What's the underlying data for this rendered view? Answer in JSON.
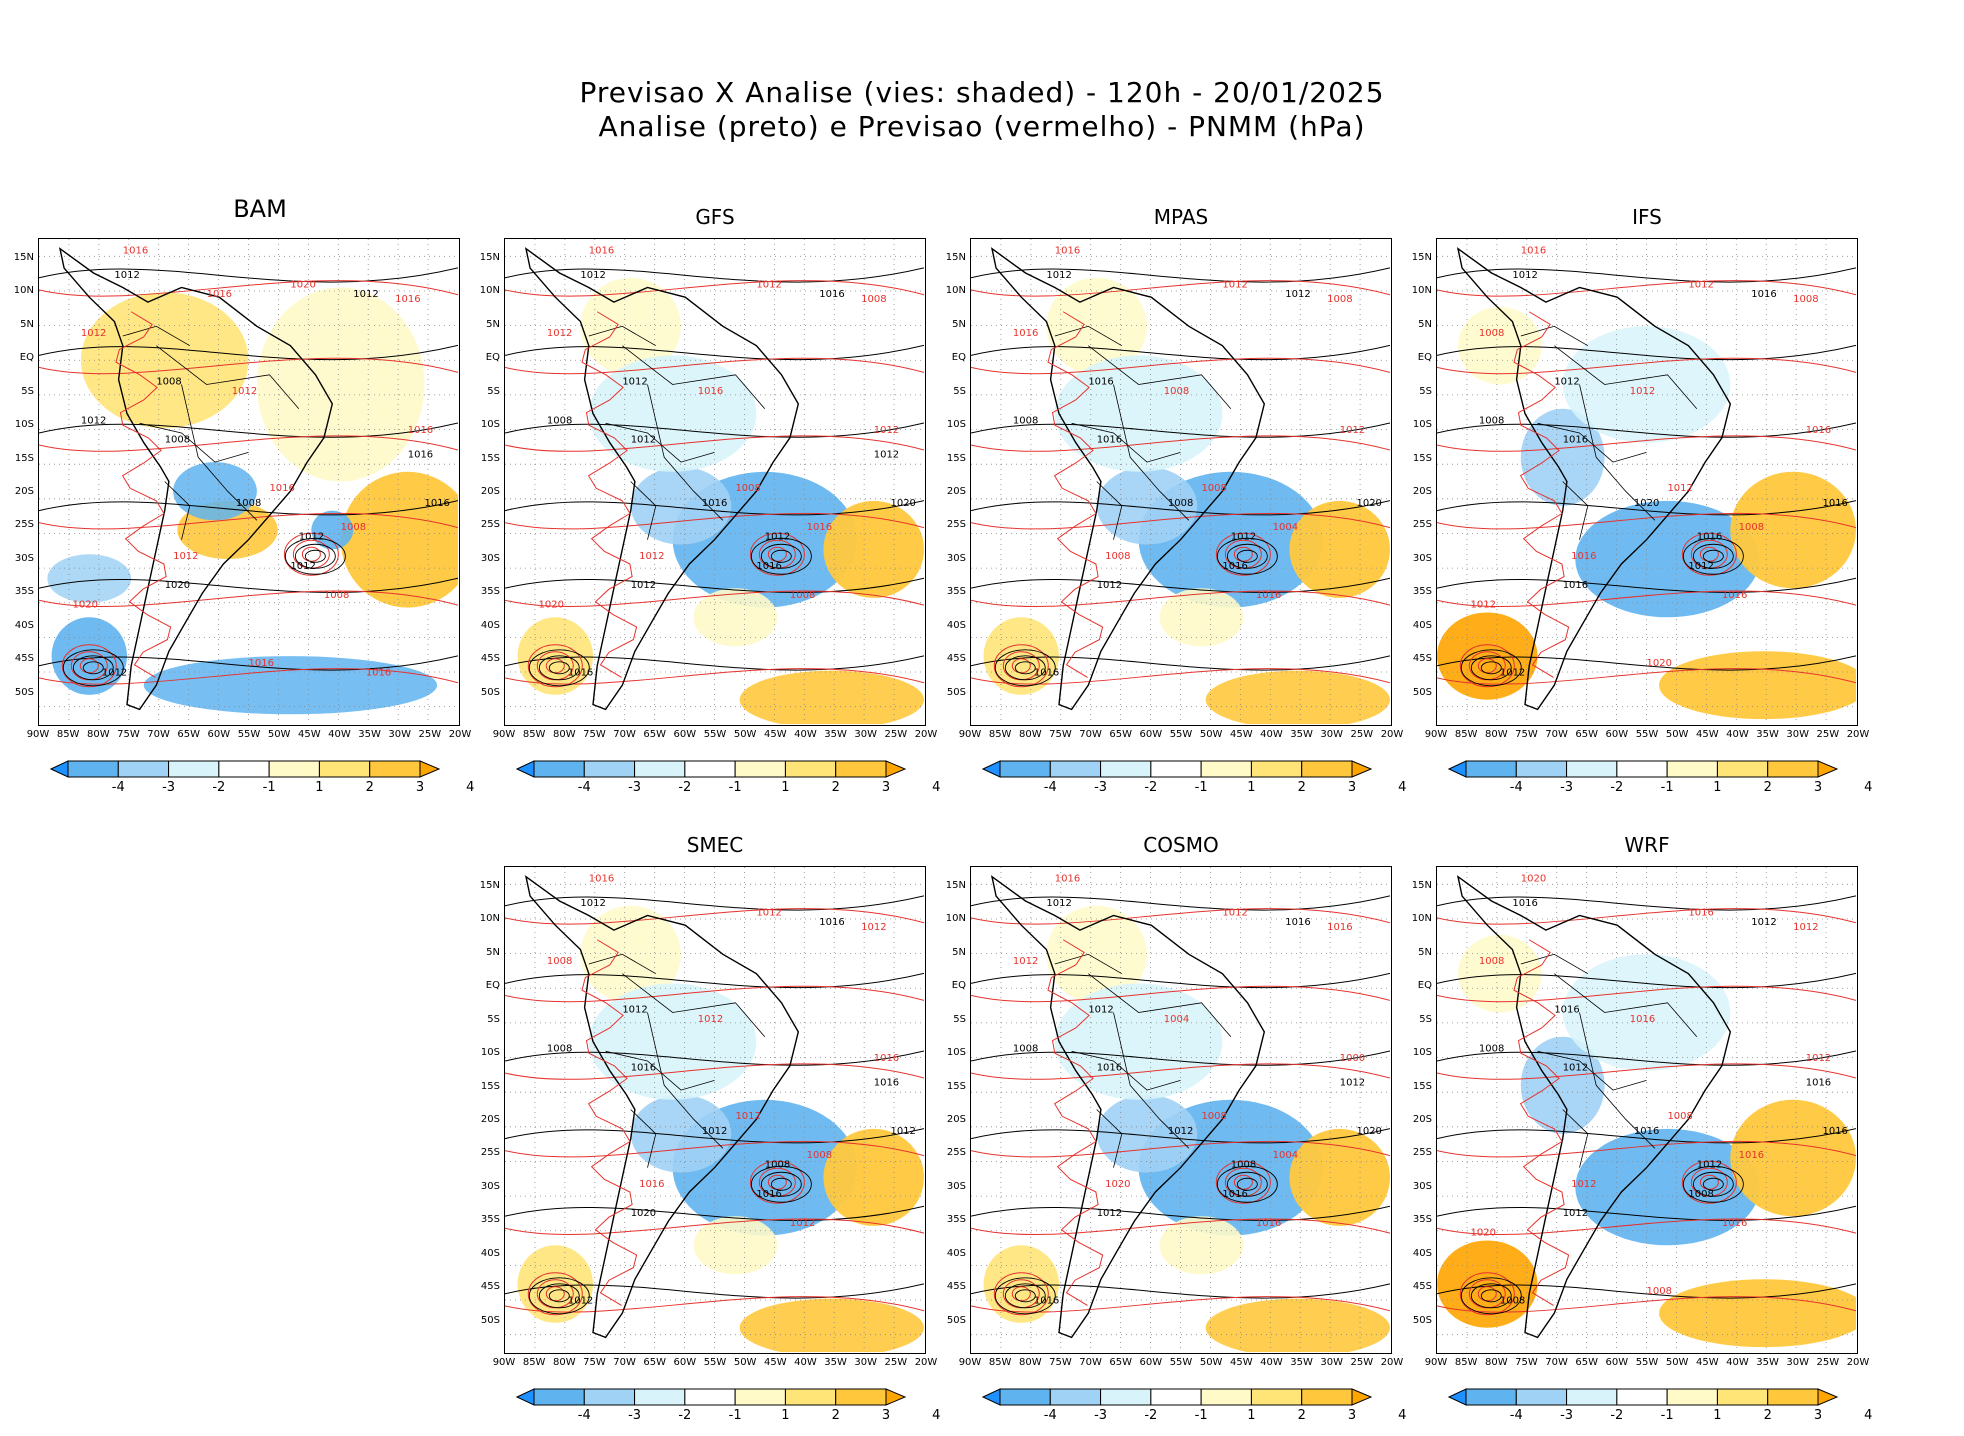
{
  "title": {
    "line1": "Previsao X Analise (vies: shaded) - 120h - 20/01/2025",
    "line2": "Analise (preto) e Previsao (vermelho) - PNMM (hPa)"
  },
  "lat_labels": [
    "15N",
    "10N",
    "5N",
    "EQ",
    "5S",
    "10S",
    "15S",
    "20S",
    "25S",
    "30S",
    "35S",
    "40S",
    "45S",
    "50S"
  ],
  "lon_labels": [
    "90W",
    "85W",
    "80W",
    "75W",
    "70W",
    "65W",
    "60W",
    "55W",
    "50W",
    "45W",
    "40W",
    "35W",
    "30W",
    "25W",
    "20W"
  ],
  "colorbar": {
    "labels": [
      "-4",
      "-3",
      "-2",
      "-1",
      "1",
      "2",
      "3",
      "4"
    ],
    "colors": [
      "#1e90ff",
      "#5fb4f0",
      "#a0d2f5",
      "#d8f4fa",
      "#ffffff",
      "#fffac8",
      "#ffe478",
      "#ffc83c",
      "#ffa500"
    ]
  },
  "colors": {
    "analysis_contour": "#000000",
    "forecast_contour": "#e6322d",
    "negative_bias": "#5fb4f0",
    "positive_bias": "#ffc83c",
    "grid": "#888888"
  },
  "panels": [
    {
      "id": "BAM",
      "name": "BAM",
      "bias": "warm",
      "labels_black": [
        "1012",
        "1012",
        "1008",
        "1012",
        "1008",
        "1008",
        "1012",
        "1012",
        "1016",
        "1020",
        "1012",
        "1016"
      ],
      "labels_red": [
        "1016",
        "1020",
        "1016",
        "1012",
        "1012",
        "1016",
        "1016",
        "1008",
        "1012",
        "1008",
        "1020",
        "1016",
        "1016",
        "1016"
      ]
    },
    {
      "id": "GFS",
      "name": "GFS",
      "bias": "cool",
      "labels_black": [
        "1012",
        "1016",
        "1012",
        "1008",
        "1012",
        "1016",
        "1012",
        "1016",
        "1020",
        "1012",
        "1016",
        "1012"
      ],
      "labels_red": [
        "1016",
        "1012",
        "1008",
        "1012",
        "1016",
        "1012",
        "1008",
        "1016",
        "1012",
        "1008",
        "1020"
      ]
    },
    {
      "id": "MPAS",
      "name": "MPAS",
      "bias": "cool",
      "labels_black": [
        "1012",
        "1012",
        "1016",
        "1008",
        "1016",
        "1008",
        "1012",
        "1016",
        "1020",
        "1012",
        "1016"
      ],
      "labels_red": [
        "1016",
        "1012",
        "1008",
        "1016",
        "1008",
        "1012",
        "1008",
        "1004",
        "1008",
        "1016"
      ]
    },
    {
      "id": "IFS",
      "name": "IFS",
      "bias": "mixed",
      "labels_black": [
        "1012",
        "1016",
        "1012",
        "1008",
        "1016",
        "1020",
        "1016",
        "1012",
        "1016",
        "1016",
        "1012"
      ],
      "labels_red": [
        "1016",
        "1012",
        "1008",
        "1008",
        "1012",
        "1016",
        "1012",
        "1008",
        "1016",
        "1016",
        "1012",
        "1020"
      ]
    },
    {
      "id": "SMEC",
      "name": "SMEC",
      "bias": "cool",
      "labels_black": [
        "1012",
        "1016",
        "1012",
        "1008",
        "1016",
        "1012",
        "1008",
        "1016",
        "1012",
        "1020",
        "1012",
        "1016"
      ],
      "labels_red": [
        "1016",
        "1012",
        "1012",
        "1008",
        "1012",
        "1016",
        "1012",
        "1008",
        "1016",
        "1012"
      ]
    },
    {
      "id": "COSMO",
      "name": "COSMO",
      "bias": "cool",
      "labels_black": [
        "1012",
        "1016",
        "1012",
        "1008",
        "1016",
        "1012",
        "1008",
        "1016",
        "1020",
        "1012",
        "1016",
        "1012"
      ],
      "labels_red": [
        "1016",
        "1012",
        "1016",
        "1012",
        "1004",
        "1000",
        "1008",
        "1004",
        "1020",
        "1016"
      ]
    },
    {
      "id": "WRF",
      "name": "WRF",
      "bias": "mixed",
      "labels_black": [
        "1016",
        "1012",
        "1016",
        "1008",
        "1012",
        "1016",
        "1012",
        "1008",
        "1016",
        "1012",
        "1008",
        "1016"
      ],
      "labels_red": [
        "1020",
        "1016",
        "1012",
        "1008",
        "1016",
        "1012",
        "1008",
        "1016",
        "1012",
        "1016",
        "1020",
        "1008"
      ]
    }
  ]
}
